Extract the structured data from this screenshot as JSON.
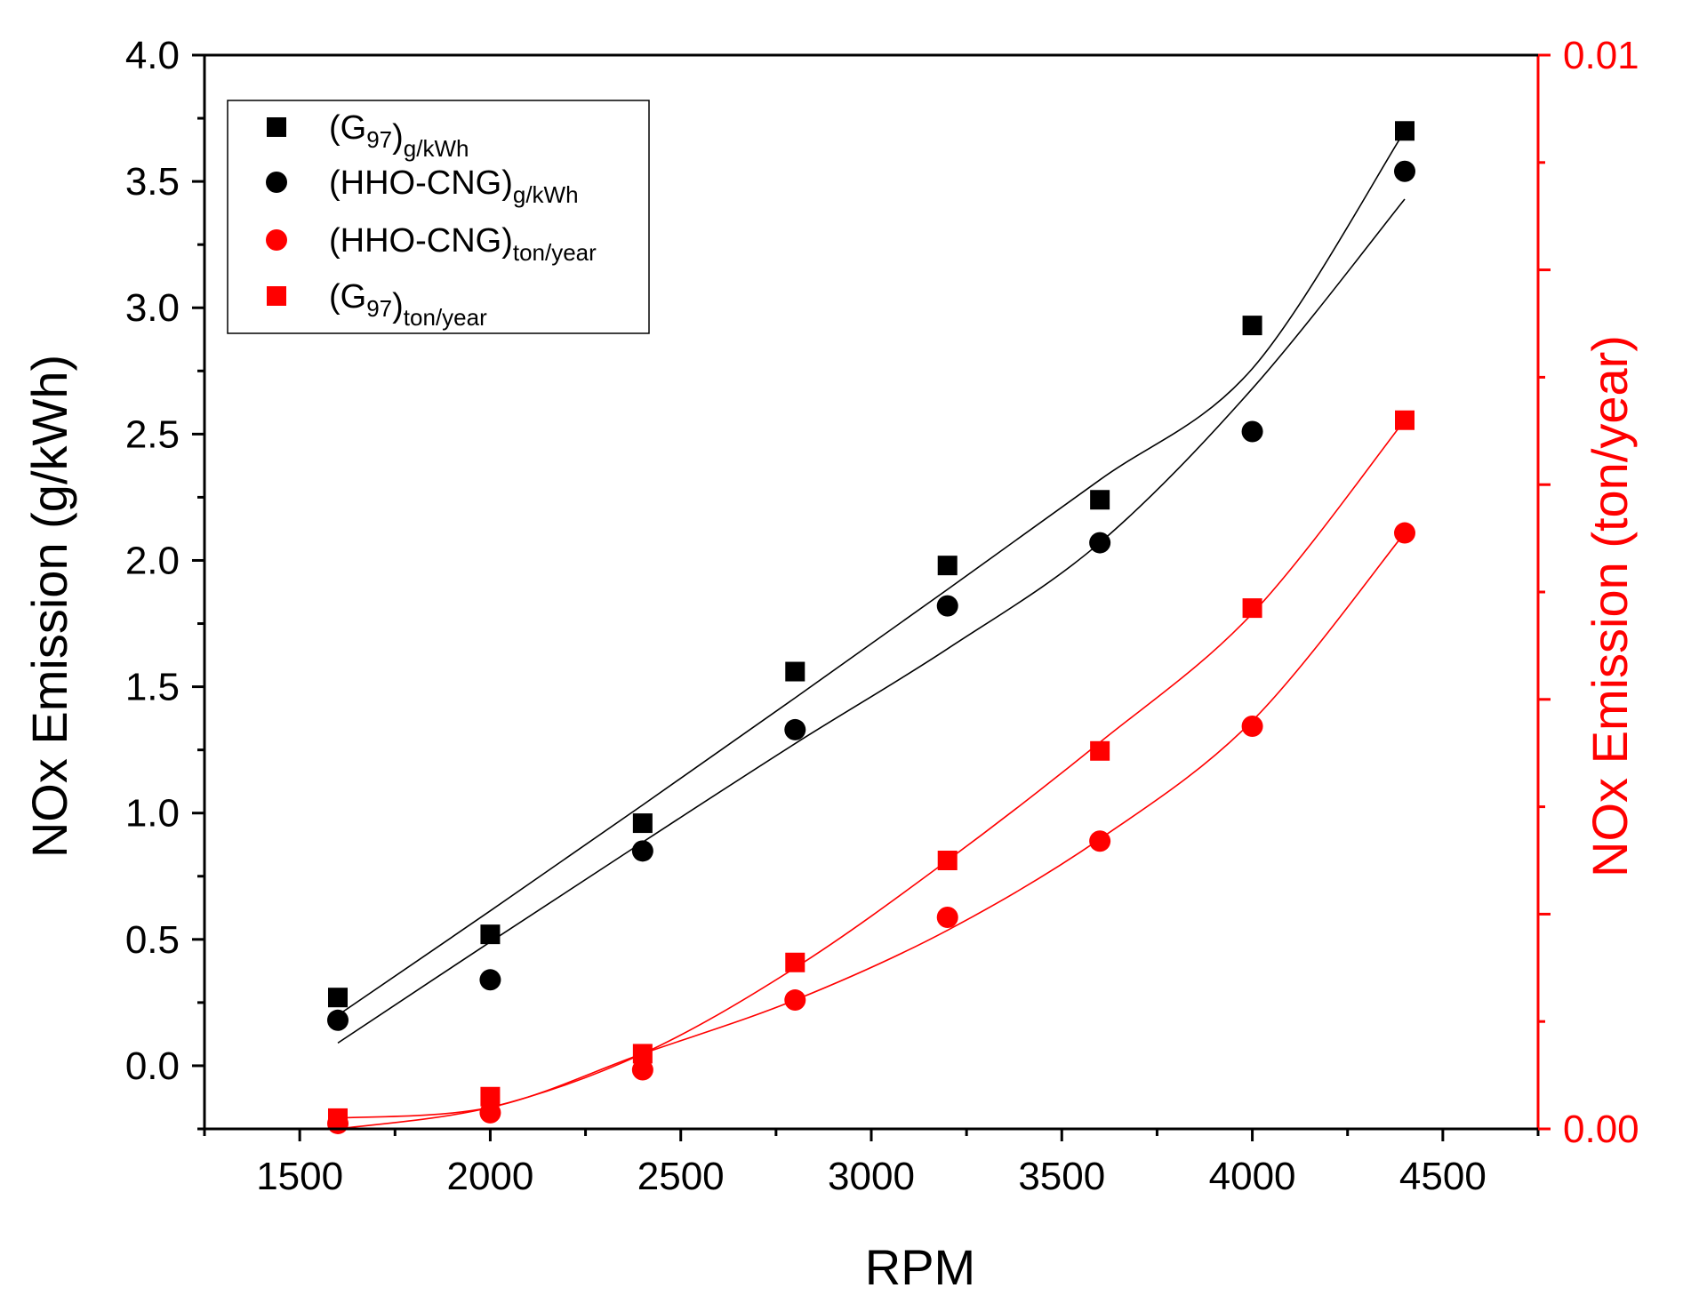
{
  "chart_data": {
    "type": "scatter",
    "x_axis": {
      "label": "RPM",
      "range": [
        1250,
        4750
      ],
      "tick_labels": [
        "1500",
        "2000",
        "2500",
        "3000",
        "3500",
        "4000",
        "4500"
      ]
    },
    "y_axis_left": {
      "label": "NOx Emission (g/kWh)",
      "range": [
        -0.25,
        4.0
      ],
      "tick_labels": [
        "0.0",
        "0.5",
        "1.0",
        "1.5",
        "2.0",
        "2.5",
        "3.0",
        "3.5",
        "4.0"
      ],
      "color": "#000000"
    },
    "y_axis_right": {
      "label": "NOx Emission (ton/year)",
      "range": [
        0.0,
        0.01
      ],
      "tick_labels": [
        "0.00",
        "0.01"
      ],
      "color": "#ff0000"
    },
    "x": [
      1600,
      2000,
      2400,
      2800,
      3200,
      3600,
      4000,
      4400
    ],
    "series": [
      {
        "name": "(G97)g/kWh",
        "legend_main": "(G",
        "legend_sub1": "97",
        "legend_close": ")",
        "legend_sub2": "g/kWh",
        "axis": "left",
        "marker": "square",
        "color": "#000000",
        "values": [
          0.27,
          0.52,
          0.96,
          1.56,
          1.98,
          2.24,
          2.93,
          3.7
        ],
        "fit": [
          0.2,
          0.613,
          1.032,
          1.456,
          1.885,
          2.319,
          2.759,
          3.7
        ]
      },
      {
        "name": "(HHO-CNG)g/kWh",
        "legend_main": "(HHO-CNG",
        "legend_sub1": "",
        "legend_close": ")",
        "legend_sub2": "g/kWh",
        "axis": "left",
        "marker": "circle",
        "color": "#000000",
        "values": [
          0.18,
          0.34,
          0.85,
          1.33,
          1.82,
          2.07,
          2.51,
          3.54
        ],
        "fit": [
          0.09,
          0.49,
          0.885,
          1.275,
          1.65,
          2.07,
          2.68,
          3.43
        ]
      },
      {
        "name": "(HHO-CNG)ton/year",
        "legend_main": "(HHO-CNG",
        "legend_sub1": "",
        "legend_close": ")",
        "legend_sub2": "ton/year",
        "axis": "right",
        "marker": "circle",
        "color": "#ff0000",
        "values": [
          5e-05,
          0.00015,
          0.00055,
          0.0012,
          0.00197,
          0.00268,
          0.00375,
          0.00555
        ],
        "fit": [
          0.0001,
          0.0002,
          0.0007,
          0.0012,
          0.00185,
          0.0027,
          0.0038,
          0.00555
        ]
      },
      {
        "name": "(G97)ton/year",
        "legend_main": "(G",
        "legend_sub1": "97",
        "legend_close": ")",
        "legend_sub2": "ton/year",
        "axis": "right",
        "marker": "square",
        "color": "#ff0000",
        "values": [
          0.0001,
          0.0003,
          0.0007,
          0.00155,
          0.0025,
          0.00352,
          0.00485,
          0.0066
        ],
        "fit": [
          0.0,
          0.0002,
          0.0007,
          0.0015,
          0.0025,
          0.0036,
          0.0048,
          0.0066
        ]
      }
    ]
  }
}
